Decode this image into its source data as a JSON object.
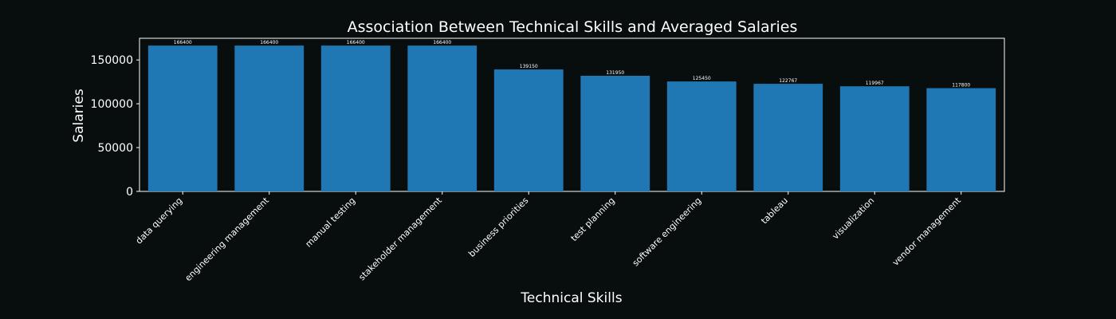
{
  "chart_data": {
    "type": "bar",
    "title": "Association Between Technical Skills and Averaged Salaries",
    "xlabel": "Technical Skills",
    "ylabel": "Salaries",
    "categories": [
      "data querying",
      "engineering management",
      "manual testing",
      "stakeholder management",
      "business priorities",
      "test planning",
      "software engineering",
      "tableau",
      "visualization",
      "vendor management"
    ],
    "values": [
      166400,
      166400,
      166400,
      166400,
      139150,
      131950,
      125450,
      122767,
      119967,
      117800
    ],
    "data_labels": [
      "166400",
      "166400",
      "166400",
      "166400",
      "139150",
      "131950",
      "125450",
      "122767",
      "119967",
      "117800"
    ],
    "yticks": [
      0,
      50000,
      100000,
      150000
    ],
    "ytick_labels": [
      "0",
      "50000",
      "100000",
      "150000"
    ],
    "ylim": [
      0,
      174720
    ],
    "grid": false,
    "legend": "none",
    "colors": {
      "background": "#080d0e",
      "bar": "#1f77b4",
      "text": "#ffffff",
      "axes": "#ffffff"
    }
  }
}
